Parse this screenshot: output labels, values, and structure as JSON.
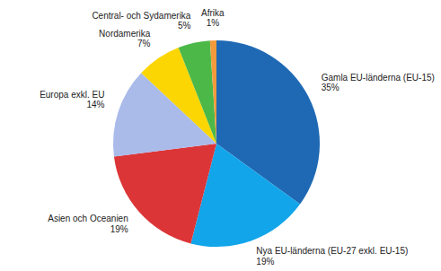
{
  "chart_data": {
    "type": "pie",
    "categories": [
      "Gamla EU-länderna (EU-15)",
      "Nya EU-länderna (EU-27 exkl. EU-15)",
      "Asien och Oceanien",
      "Europa exkl. EU",
      "Nordamerika",
      "Central- och Sydamerika",
      "Afrika"
    ],
    "values": [
      35,
      19,
      19,
      14,
      7,
      5,
      1
    ],
    "value_labels": [
      "35%",
      "19%",
      "19%",
      "14%",
      "7%",
      "5%",
      "1%"
    ],
    "colors": [
      "#1f69b4",
      "#12a5ea",
      "#dc3537",
      "#aabbea",
      "#fcd602",
      "#4cb848",
      "#f39a3c"
    ],
    "data_labels": true
  }
}
